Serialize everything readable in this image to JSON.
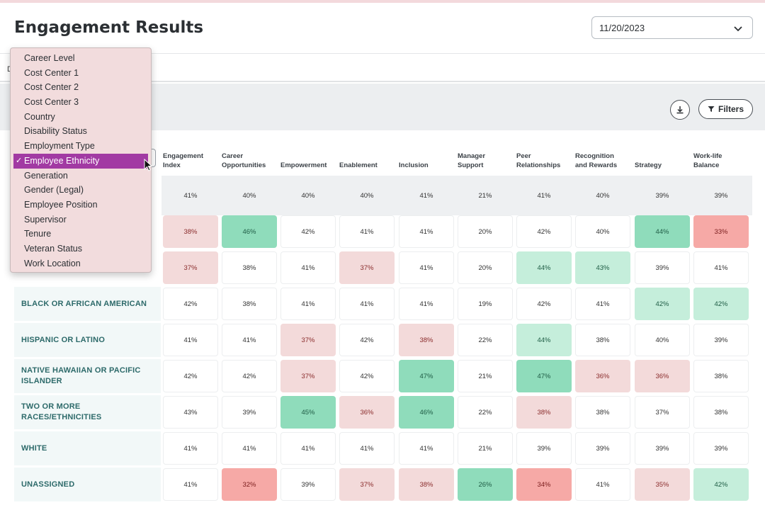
{
  "header": {
    "title": "Engagement Results",
    "date_value": "11/20/2023"
  },
  "tabs": {
    "fragment": "D"
  },
  "toolbar": {
    "filters_label": "Filters"
  },
  "dropdown": {
    "items": [
      "Career Level",
      "Cost Center 1",
      "Cost Center 2",
      "Cost Center 3",
      "Country",
      "Disability Status",
      "Employment Type",
      "Employee Ethnicity",
      "Generation",
      "Gender (Legal)",
      "Employee Position",
      "Supervisor",
      "Tenure",
      "Veteran Status",
      "Work Location"
    ],
    "selected_index": 7,
    "check_glyph": "✓"
  },
  "columns": [
    [
      "Engagement",
      "Index"
    ],
    [
      "Career",
      "Opportunities"
    ],
    [
      "Empowerment"
    ],
    [
      "Enablement"
    ],
    [
      "Inclusion"
    ],
    [
      "Manager",
      "Support"
    ],
    [
      "Peer",
      "Relationships"
    ],
    [
      "Recognition",
      "and Rewards"
    ],
    [
      "Strategy"
    ],
    [
      "Work-life",
      "Balance"
    ]
  ],
  "rows": [
    {
      "label": "",
      "values": [
        "41%",
        "40%",
        "40%",
        "40%",
        "41%",
        "21%",
        "41%",
        "40%",
        "39%",
        "39%"
      ],
      "styles": [
        "overall",
        "overall",
        "overall",
        "overall",
        "overall",
        "overall",
        "overall",
        "overall",
        "overall",
        "overall"
      ]
    },
    {
      "label": "",
      "values": [
        "38%",
        "46%",
        "42%",
        "41%",
        "41%",
        "20%",
        "42%",
        "40%",
        "44%",
        "33%"
      ],
      "styles": [
        "neg1",
        "pos2",
        "",
        "",
        "",
        "",
        "",
        "",
        "pos2",
        "neg2"
      ]
    },
    {
      "label": "",
      "values": [
        "37%",
        "38%",
        "41%",
        "37%",
        "41%",
        "20%",
        "44%",
        "43%",
        "39%",
        "41%"
      ],
      "styles": [
        "neg1",
        "",
        "",
        "neg1",
        "",
        "",
        "pos1",
        "pos1",
        "",
        ""
      ]
    },
    {
      "label": "BLACK OR AFRICAN AMERICAN",
      "values": [
        "42%",
        "38%",
        "41%",
        "41%",
        "41%",
        "19%",
        "42%",
        "41%",
        "42%",
        "42%"
      ],
      "styles": [
        "",
        "",
        "",
        "",
        "",
        "",
        "",
        "",
        "pos1",
        "pos1"
      ]
    },
    {
      "label": "HISPANIC OR LATINO",
      "values": [
        "41%",
        "41%",
        "37%",
        "42%",
        "38%",
        "22%",
        "44%",
        "38%",
        "40%",
        "39%"
      ],
      "styles": [
        "",
        "",
        "neg1",
        "",
        "neg1",
        "",
        "pos1",
        "",
        "",
        ""
      ]
    },
    {
      "label": "NATIVE HAWAIIAN OR PACIFIC ISLANDER",
      "values": [
        "42%",
        "42%",
        "37%",
        "42%",
        "47%",
        "21%",
        "47%",
        "36%",
        "36%",
        "38%"
      ],
      "styles": [
        "",
        "",
        "neg1",
        "",
        "pos2",
        "",
        "pos2",
        "neg1",
        "neg1",
        ""
      ]
    },
    {
      "label": "TWO OR MORE RACES/ETHNICITIES",
      "values": [
        "43%",
        "39%",
        "45%",
        "36%",
        "46%",
        "22%",
        "38%",
        "38%",
        "37%",
        "38%"
      ],
      "styles": [
        "",
        "",
        "pos2",
        "neg1",
        "pos2",
        "",
        "neg1",
        "",
        "",
        ""
      ]
    },
    {
      "label": "WHITE",
      "values": [
        "41%",
        "41%",
        "41%",
        "41%",
        "41%",
        "21%",
        "39%",
        "39%",
        "39%",
        "39%"
      ],
      "styles": [
        "",
        "",
        "",
        "",
        "",
        "",
        "",
        "",
        "",
        ""
      ]
    },
    {
      "label": "UNASSIGNED",
      "values": [
        "41%",
        "32%",
        "39%",
        "37%",
        "38%",
        "26%",
        "34%",
        "41%",
        "35%",
        "42%"
      ],
      "styles": [
        "",
        "neg2",
        "",
        "neg1",
        "neg1",
        "pos2",
        "neg2",
        "",
        "neg1",
        "pos1"
      ]
    }
  ],
  "colors": {
    "accent_selected": "#a23aa3",
    "low_light": "#f3dada",
    "low_strong": "#f6a9a6",
    "high_light": "#c5eedb",
    "high_strong": "#8fdcbb"
  },
  "icons": [
    "chevron-down-icon",
    "download-icon",
    "filter-icon",
    "checkmark-icon",
    "mouse-cursor-icon"
  ]
}
